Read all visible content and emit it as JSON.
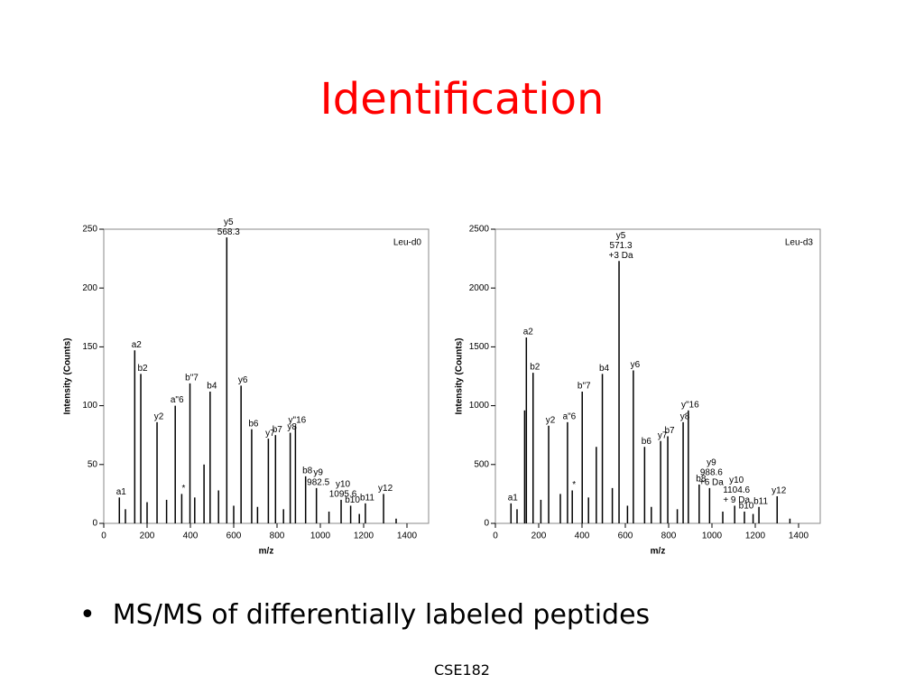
{
  "title": "Identification",
  "bullet": "MS/MS of differentially labeled peptides",
  "footer": "CSE182",
  "chart_data": [
    {
      "type": "stem",
      "legend_text": "Leu-d0",
      "x_label": "m/z",
      "y_label": "Intensity (Counts)",
      "color": "#000000",
      "xlim": [
        0,
        1500
      ],
      "ylim": [
        0,
        250
      ],
      "xticks": [
        0,
        200,
        400,
        600,
        800,
        1000,
        1200,
        1400
      ],
      "yticks": [
        0,
        50,
        100,
        150,
        200,
        250
      ],
      "x": [
        72,
        143,
        171,
        246,
        330,
        360,
        398,
        463,
        491,
        568,
        634,
        683,
        760,
        793,
        861,
        885,
        932,
        982,
        1096,
        1140,
        1208,
        1292,
        100,
        200,
        290,
        420,
        530,
        600,
        710,
        830,
        1040,
        1180,
        1350
      ],
      "values": [
        22,
        147,
        127,
        86,
        100,
        25,
        119,
        50,
        112,
        243,
        117,
        80,
        72,
        75,
        77,
        83,
        40,
        30,
        20,
        15,
        17,
        25,
        12,
        18,
        20,
        22,
        28,
        15,
        14,
        12,
        10,
        8,
        4
      ],
      "peak_labels": [
        [
          "a1"
        ],
        [
          "a2"
        ],
        [
          "b2"
        ],
        [
          "y2"
        ],
        [
          "a\"6"
        ],
        [
          "*"
        ],
        [
          "b\"7"
        ],
        null,
        [
          "b4"
        ],
        [
          "y5",
          "568.3"
        ],
        [
          "y6"
        ],
        [
          "b6"
        ],
        [
          "y7"
        ],
        [
          "b7"
        ],
        [
          "y8"
        ],
        [
          "y\"16"
        ],
        [
          "b8"
        ],
        [
          "y9",
          "982.5"
        ],
        [
          "y10",
          "1095.6"
        ],
        [
          "b10"
        ],
        [
          "b11"
        ],
        [
          "y12"
        ],
        null,
        null,
        null,
        null,
        null,
        null,
        null,
        null,
        null,
        null,
        null
      ]
    },
    {
      "type": "stem",
      "legend_text": "Leu-d3",
      "x_label": "m/z",
      "y_label": "Intensity (Counts)",
      "color": "#000000",
      "xlim": [
        0,
        1500
      ],
      "ylim": [
        0,
        2500
      ],
      "xticks": [
        0,
        200,
        400,
        600,
        800,
        1000,
        1200,
        1400
      ],
      "yticks": [
        0,
        500,
        1000,
        1500,
        2000,
        2500
      ],
      "x": [
        72,
        135,
        143,
        174,
        246,
        333,
        355,
        401,
        466,
        494,
        571,
        637,
        689,
        763,
        796,
        867,
        891,
        941,
        989,
        1105,
        1150,
        1217,
        1301,
        100,
        210,
        300,
        430,
        540,
        610,
        720,
        840,
        1050,
        1190,
        1360
      ],
      "values": [
        170,
        960,
        1580,
        1280,
        830,
        860,
        280,
        1120,
        650,
        1270,
        2230,
        1300,
        650,
        700,
        740,
        860,
        960,
        330,
        300,
        150,
        100,
        140,
        230,
        120,
        200,
        250,
        220,
        300,
        150,
        140,
        120,
        100,
        80,
        40
      ],
      "peak_labels": [
        [
          "a1"
        ],
        null,
        [
          "a2"
        ],
        [
          "b2"
        ],
        [
          "y2"
        ],
        [
          "a\"6"
        ],
        [
          "*"
        ],
        [
          "b\"7"
        ],
        null,
        [
          "b4"
        ],
        [
          "y5",
          "571.3",
          "+3 Da"
        ],
        [
          "y6"
        ],
        [
          "b6"
        ],
        [
          "y7"
        ],
        [
          "b7"
        ],
        [
          "y8"
        ],
        [
          "y\"16"
        ],
        [
          "b8"
        ],
        [
          "y9",
          "988.6",
          "+6 Da"
        ],
        [
          "y10",
          "1104.6",
          "+ 9 Da"
        ],
        [
          "b10"
        ],
        [
          "b11"
        ],
        [
          "y12"
        ],
        null,
        null,
        null,
        null,
        null,
        null,
        null,
        null,
        null,
        null,
        null
      ]
    }
  ]
}
